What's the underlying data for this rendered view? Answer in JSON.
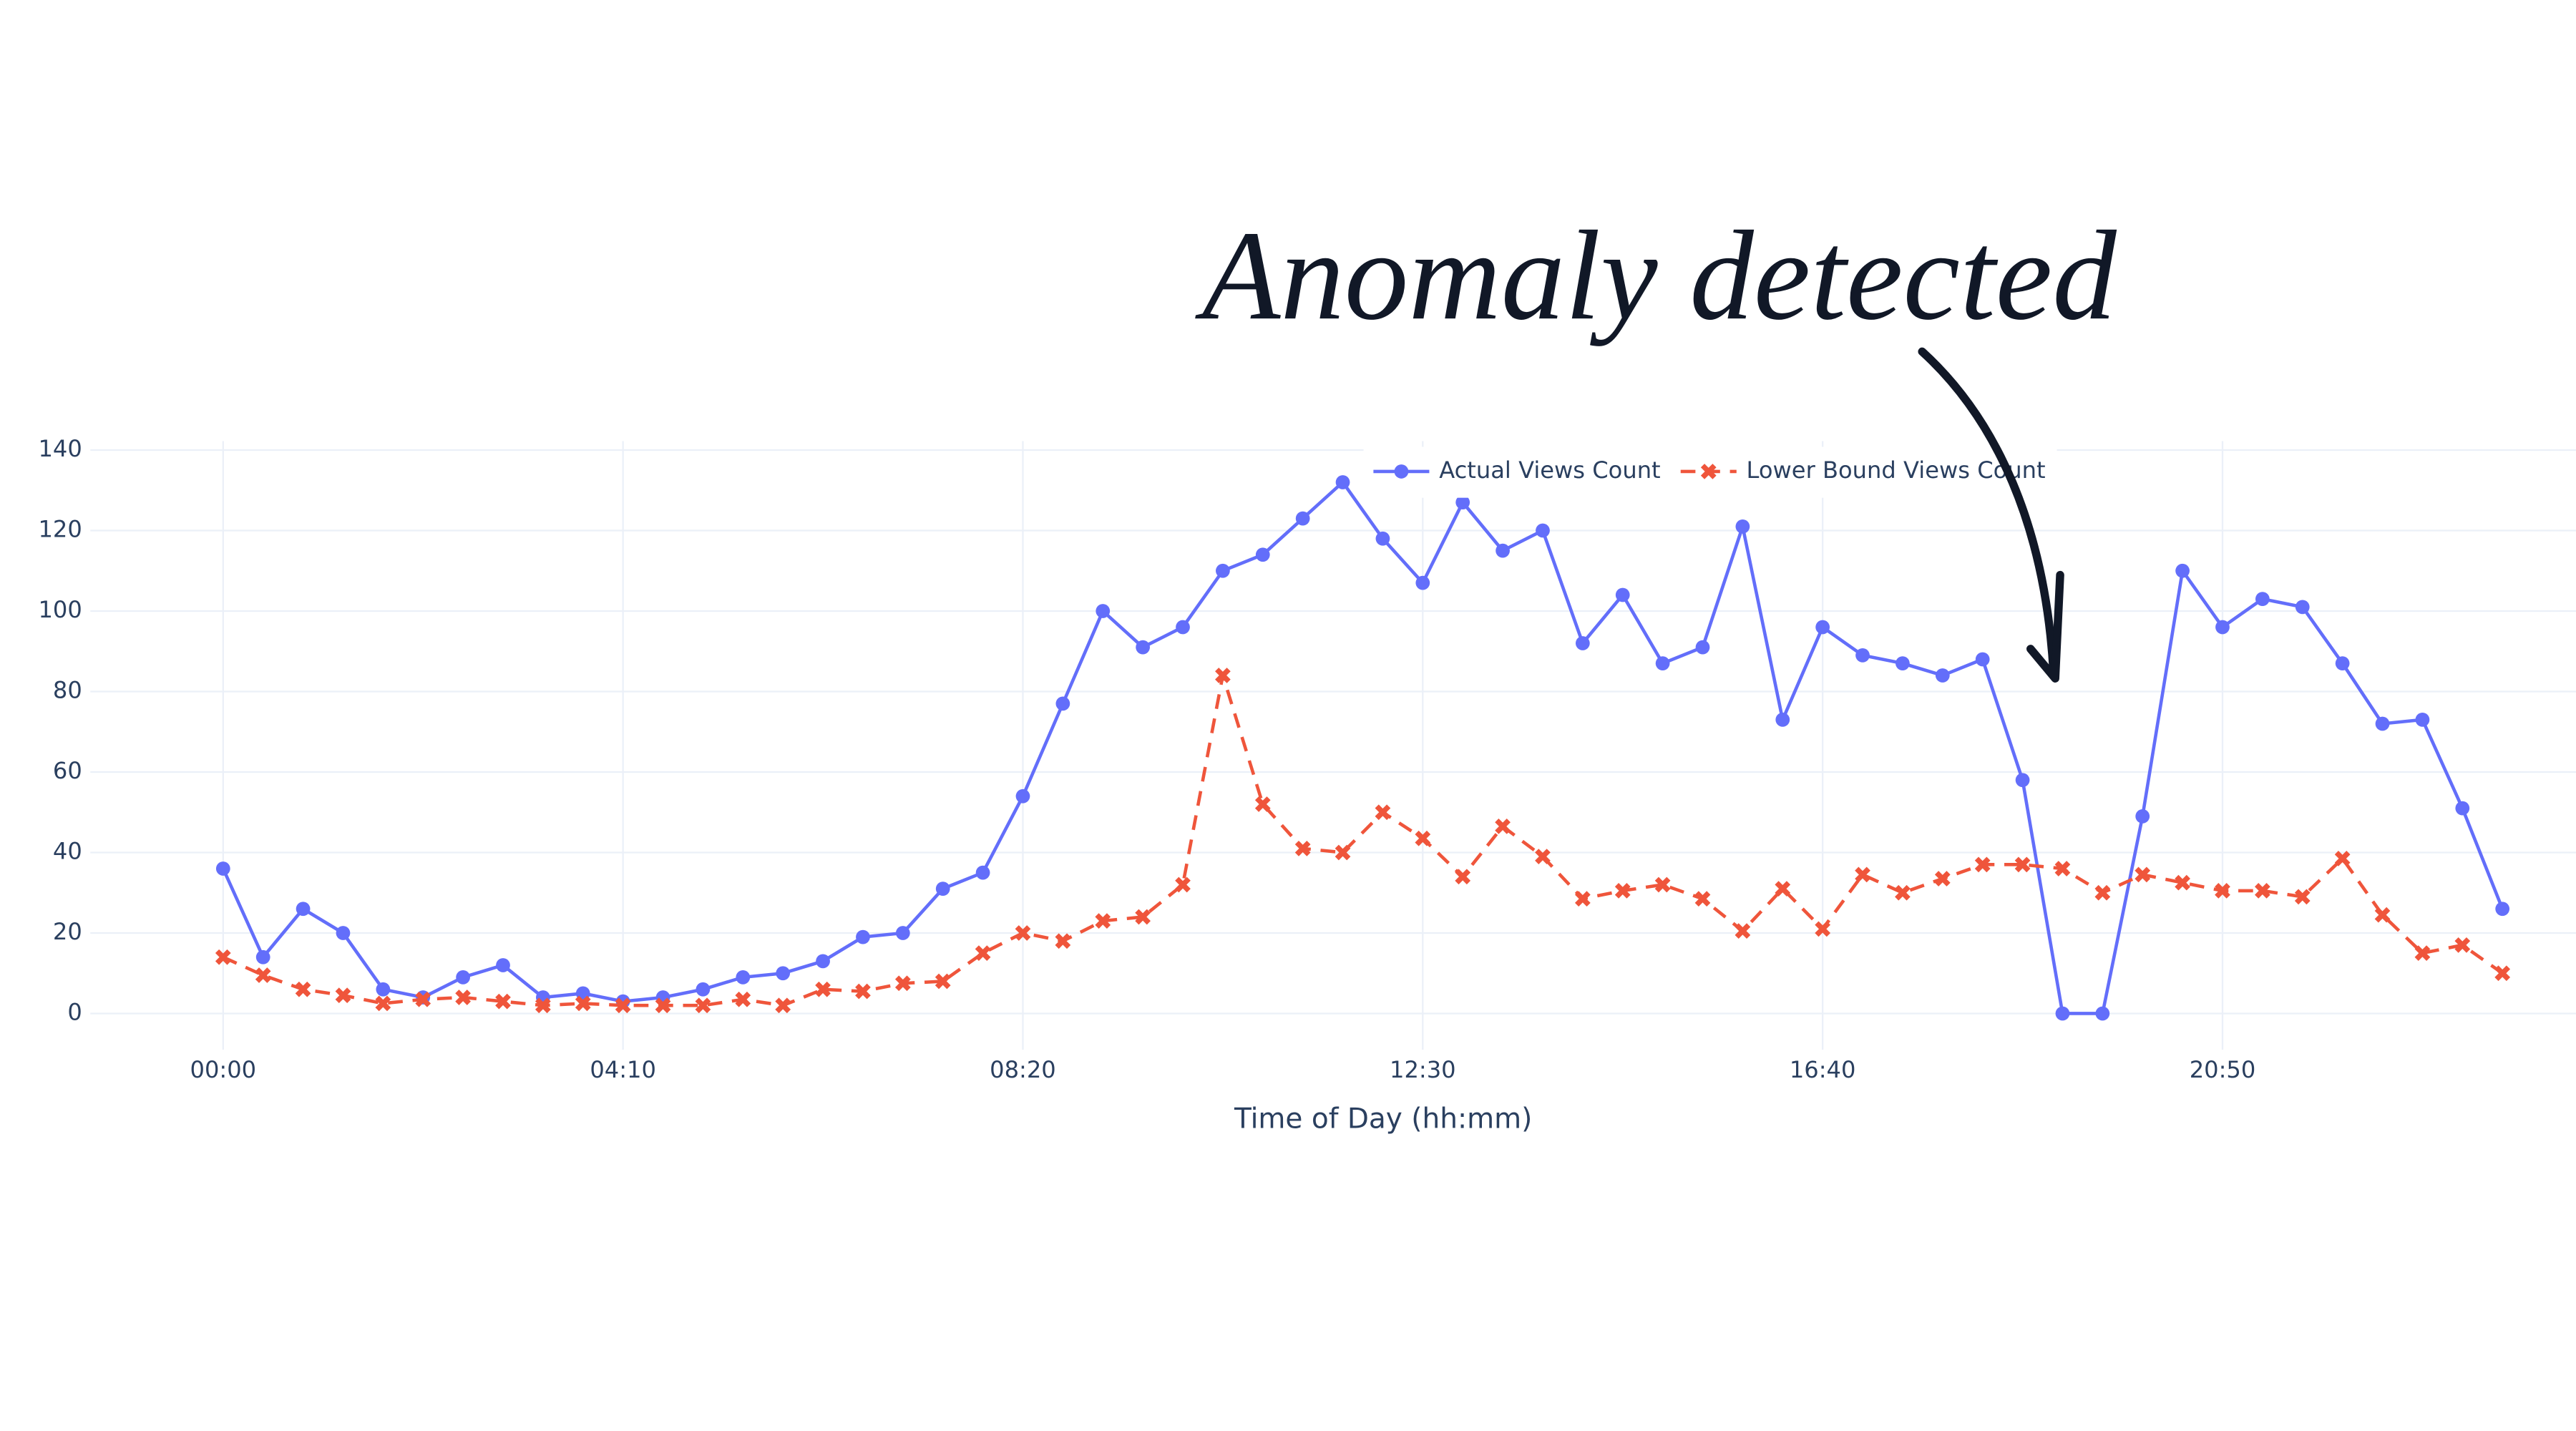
{
  "chart_data": {
    "type": "line",
    "annotation": "Anomaly detected",
    "x_label": "Time of Day (hh:mm)",
    "x": [
      0,
      25,
      50,
      75,
      100,
      125,
      150,
      175,
      200,
      225,
      250,
      275,
      300,
      325,
      350,
      375,
      400,
      425,
      450,
      475,
      500,
      525,
      550,
      575,
      600,
      625,
      650,
      675,
      700,
      725,
      750,
      775,
      800,
      825,
      850,
      875,
      900,
      925,
      950,
      975,
      1000,
      1025,
      1050,
      1075,
      1100,
      1125,
      1150,
      1175,
      1200,
      1225,
      1250,
      1275,
      1300,
      1325,
      1350,
      1375,
      1400,
      1425
    ],
    "series": [
      {
        "name": "Actual Views Count",
        "color": "#636efa",
        "marker": "circle",
        "dash": "solid",
        "values": [
          36,
          14,
          26,
          20,
          6,
          4,
          9,
          12,
          4,
          5,
          3,
          4,
          6,
          9,
          10,
          13,
          19,
          20,
          31,
          35,
          54,
          77,
          100,
          91,
          96,
          110,
          114,
          123,
          132,
          118,
          107,
          127,
          115,
          120,
          92,
          104,
          87,
          91,
          121,
          73,
          96,
          89,
          87,
          84,
          88,
          58,
          0,
          0,
          49,
          110,
          96,
          103,
          101,
          87,
          72,
          73,
          51,
          26
        ]
      },
      {
        "name": "Lower Bound Views Count",
        "color": "#ef553b",
        "marker": "x",
        "dash": "dash",
        "values": [
          14,
          9.5,
          6,
          4.5,
          2.5,
          3.5,
          4,
          3,
          2,
          2.5,
          2,
          2,
          2,
          3.5,
          2,
          6,
          5.5,
          7.5,
          8,
          15,
          20,
          18,
          23,
          24,
          32,
          84,
          52,
          41,
          40,
          50,
          43.5,
          34,
          46.5,
          39,
          28.5,
          30.5,
          32,
          28.5,
          20.5,
          31,
          21,
          34.5,
          30,
          33.5,
          37,
          37,
          36,
          30,
          34.5,
          32.5,
          30.5,
          30.5,
          29,
          38.5,
          24.5,
          15,
          17,
          10
        ]
      }
    ],
    "xlim": [
      -83,
      1471
    ],
    "xticks": [
      {
        "value": 0,
        "label": "00:00"
      },
      {
        "value": 250,
        "label": "04:10"
      },
      {
        "value": 500,
        "label": "08:20"
      },
      {
        "value": 750,
        "label": "12:30"
      },
      {
        "value": 1000,
        "label": "16:40"
      },
      {
        "value": 1250,
        "label": "20:50"
      }
    ],
    "ylim": [
      -9,
      141
    ],
    "yticks": [
      0,
      20,
      40,
      60,
      80,
      100,
      120,
      140
    ],
    "grid": true,
    "legend": "top"
  }
}
